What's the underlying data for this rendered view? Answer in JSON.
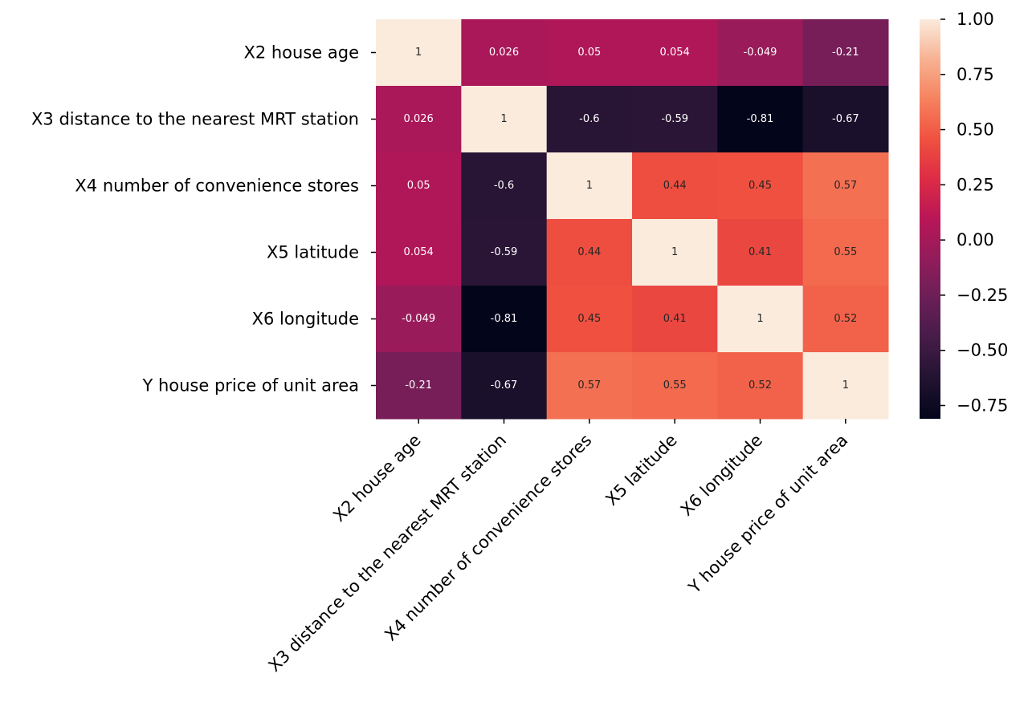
{
  "chart_data": {
    "type": "heatmap",
    "title": "",
    "xlabel": "",
    "ylabel": "",
    "rows": [
      "X2 house age",
      "X3 distance to the nearest MRT station",
      "X4 number of convenience stores",
      "X5 latitude",
      "X6 longitude",
      "Y house price of unit area"
    ],
    "columns": [
      "X2 house age",
      "X3 distance to the nearest MRT station",
      "X4 number of convenience stores",
      "X5 latitude",
      "X6 longitude",
      "Y house price of unit area"
    ],
    "values": [
      [
        1,
        0.026,
        0.05,
        0.054,
        -0.049,
        -0.21
      ],
      [
        0.026,
        1,
        -0.6,
        -0.59,
        -0.81,
        -0.67
      ],
      [
        0.05,
        -0.6,
        1,
        0.44,
        0.45,
        0.57
      ],
      [
        0.054,
        -0.59,
        0.44,
        1,
        0.41,
        0.55
      ],
      [
        -0.049,
        -0.81,
        0.45,
        0.41,
        1,
        0.52
      ],
      [
        -0.21,
        -0.67,
        0.57,
        0.55,
        0.52,
        1
      ]
    ],
    "cell_labels": [
      [
        "1",
        "0.026",
        "0.05",
        "0.054",
        "-0.049",
        "-0.21"
      ],
      [
        "0.026",
        "1",
        "-0.6",
        "-0.59",
        "-0.81",
        "-0.67"
      ],
      [
        "0.05",
        "-0.6",
        "1",
        "0.44",
        "0.45",
        "0.57"
      ],
      [
        "0.054",
        "-0.59",
        "0.44",
        "1",
        "0.41",
        "0.55"
      ],
      [
        "-0.049",
        "-0.81",
        "0.45",
        "0.41",
        "1",
        "0.52"
      ],
      [
        "-0.21",
        "-0.67",
        "0.57",
        "0.55",
        "0.52",
        "1"
      ]
    ],
    "colorbar": {
      "colormap": "rocket",
      "range": [
        -0.81,
        1.0
      ],
      "ticks": [
        1.0,
        0.75,
        0.5,
        0.25,
        0.0,
        -0.25,
        -0.5,
        -0.75
      ],
      "tick_labels": [
        "1.00",
        "0.75",
        "0.50",
        "0.25",
        "0.00",
        "−0.25",
        "−0.50",
        "−0.75"
      ]
    }
  }
}
